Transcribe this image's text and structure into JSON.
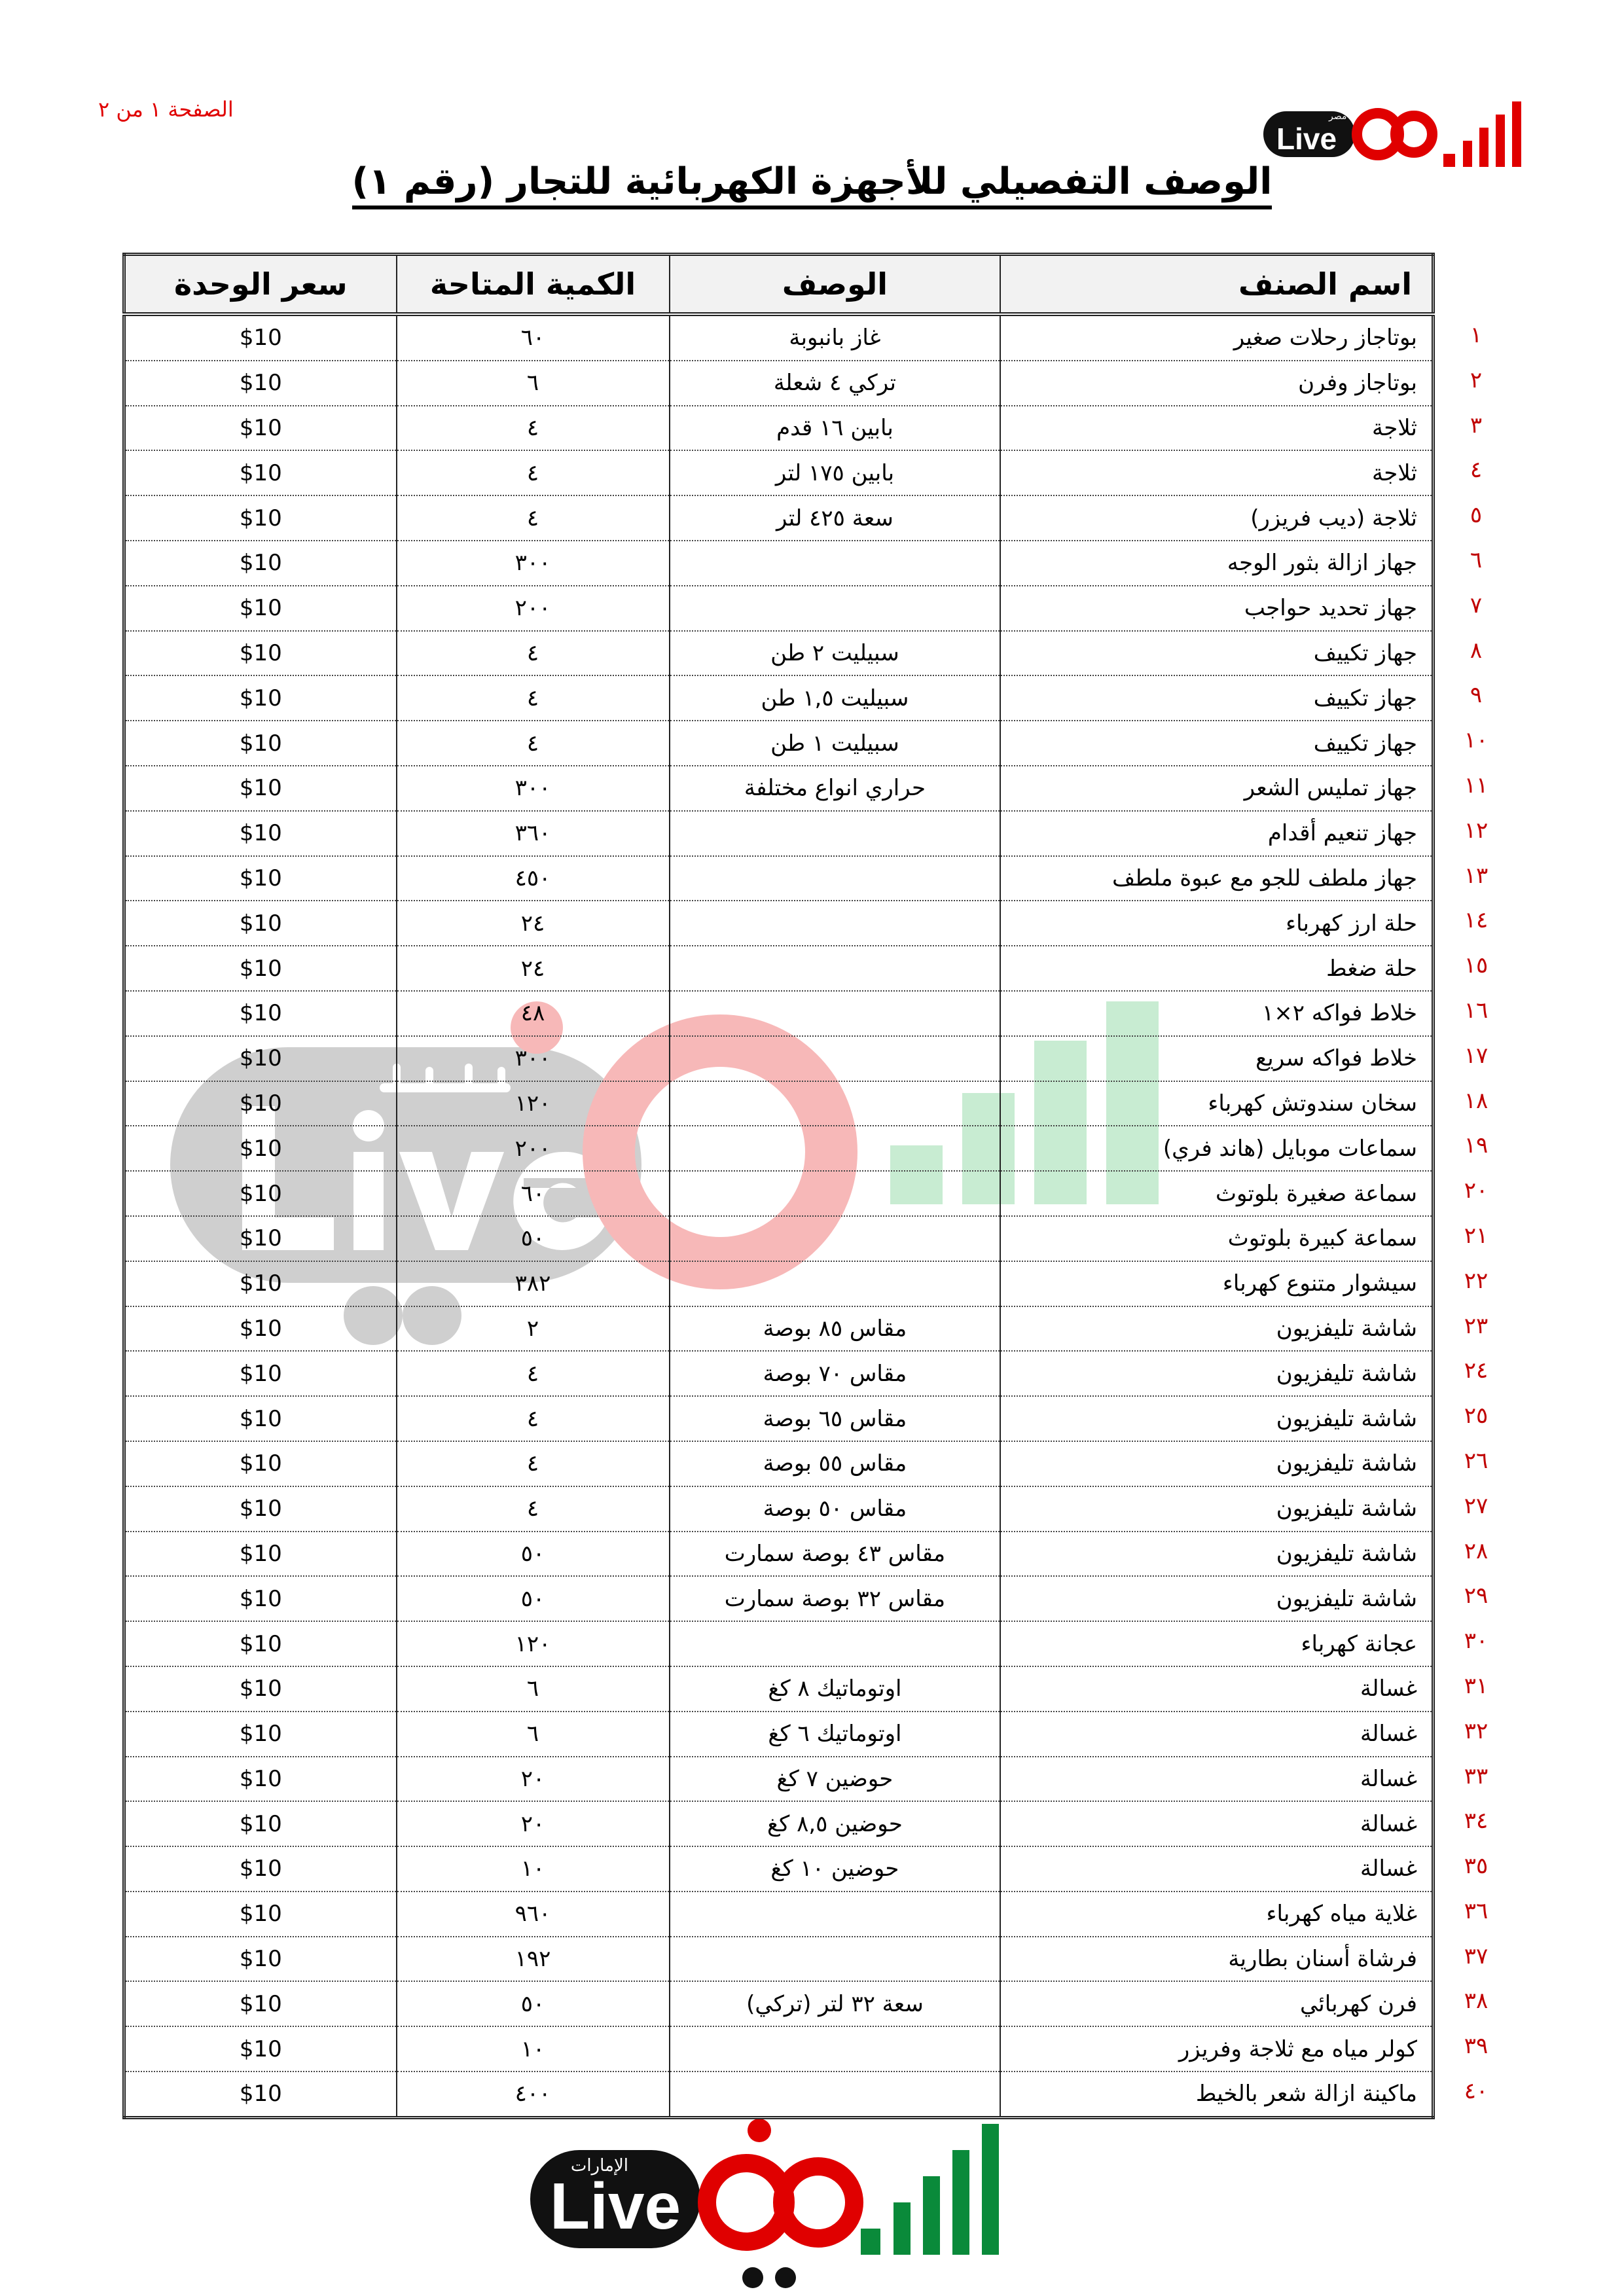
{
  "page_indicator": "الصفحة ١ من ٢",
  "logo_top": {
    "text": "Live",
    "sub": "مصر",
    "brand_color": "#e00000"
  },
  "logo_bottom": {
    "text": "Live",
    "sub": "الإمارات",
    "brand_color": "#0a8a3a"
  },
  "watermark": {
    "text": "Live",
    "sub": "الإمارات"
  },
  "title": "الوصف التفصيلي للأجهزة الكهربائية للتجار (رقم ١)",
  "table": {
    "headers": {
      "name": "اسم الصنف",
      "desc": "الوصف",
      "qty": "الكمية المتاحة",
      "price": "سعر الوحدة"
    },
    "rows": [
      {
        "n": "١",
        "name": "بوتاجاز رحلات صغير",
        "desc": "غاز بانبوبة",
        "qty": "٦٠",
        "price": "$10"
      },
      {
        "n": "٢",
        "name": "بوتاجاز وفرن",
        "desc": "تركي ٤ شعلة",
        "qty": "٦",
        "price": "$10"
      },
      {
        "n": "٣",
        "name": "ثلاجة",
        "desc": "بابين ١٦ قدم",
        "qty": "٤",
        "price": "$10"
      },
      {
        "n": "٤",
        "name": "ثلاجة",
        "desc": "بابين ١٧٥ لتر",
        "qty": "٤",
        "price": "$10"
      },
      {
        "n": "٥",
        "name": "ثلاجة (ديب فريزر)",
        "desc": "سعة ٤٢٥ لتر",
        "qty": "٤",
        "price": "$10"
      },
      {
        "n": "٦",
        "name": "جهاز ازالة بثور الوجه",
        "desc": "",
        "qty": "٣٠٠",
        "price": "$10"
      },
      {
        "n": "٧",
        "name": "جهاز تحديد حواجب",
        "desc": "",
        "qty": "٢٠٠",
        "price": "$10"
      },
      {
        "n": "٨",
        "name": "جهاز تكييف",
        "desc": "سبيليت ٢ طن",
        "qty": "٤",
        "price": "$10"
      },
      {
        "n": "٩",
        "name": "جهاز تكييف",
        "desc": "سبيليت ١,٥ طن",
        "qty": "٤",
        "price": "$10"
      },
      {
        "n": "١٠",
        "name": "جهاز تكييف",
        "desc": "سبيليت ١ طن",
        "qty": "٤",
        "price": "$10"
      },
      {
        "n": "١١",
        "name": "جهاز تمليس الشعر",
        "desc": "حراري انواع مختلفة",
        "qty": "٣٠٠",
        "price": "$10"
      },
      {
        "n": "١٢",
        "name": "جهاز تنعيم أقدام",
        "desc": "",
        "qty": "٣٦٠",
        "price": "$10"
      },
      {
        "n": "١٣",
        "name": "جهاز ملطف للجو مع عبوة ملطف",
        "desc": "",
        "qty": "٤٥٠",
        "price": "$10"
      },
      {
        "n": "١٤",
        "name": "حلة ارز كهرباء",
        "desc": "",
        "qty": "٢٤",
        "price": "$10"
      },
      {
        "n": "١٥",
        "name": "حلة ضغط",
        "desc": "",
        "qty": "٢٤",
        "price": "$10"
      },
      {
        "n": "١٦",
        "name": "خلاط فواكه ٢×١",
        "desc": "",
        "qty": "٤٨",
        "price": "$10"
      },
      {
        "n": "١٧",
        "name": "خلاط فواكه سريع",
        "desc": "",
        "qty": "٣٠٠",
        "price": "$10"
      },
      {
        "n": "١٨",
        "name": "سخان سندوتش كهرباء",
        "desc": "",
        "qty": "١٢٠",
        "price": "$10"
      },
      {
        "n": "١٩",
        "name": "سماعات موبايل (هاند فري)",
        "desc": "",
        "qty": "٢٠٠",
        "price": "$10"
      },
      {
        "n": "٢٠",
        "name": "سماعة صغيرة بلوتوث",
        "desc": "",
        "qty": "٦٠",
        "price": "$10"
      },
      {
        "n": "٢١",
        "name": "سماعة كبيرة بلوتوث",
        "desc": "",
        "qty": "٥٠",
        "price": "$10"
      },
      {
        "n": "٢٢",
        "name": "سيشوار متنوع كهرباء",
        "desc": "",
        "qty": "٣٨٢",
        "price": "$10"
      },
      {
        "n": "٢٣",
        "name": "شاشة تليفزيون",
        "desc": "مقاس ٨٥ بوصة",
        "qty": "٢",
        "price": "$10"
      },
      {
        "n": "٢٤",
        "name": "شاشة تليفزيون",
        "desc": "مقاس ٧٠ بوصة",
        "qty": "٤",
        "price": "$10"
      },
      {
        "n": "٢٥",
        "name": "شاشة تليفزيون",
        "desc": "مقاس ٦٥ بوصة",
        "qty": "٤",
        "price": "$10"
      },
      {
        "n": "٢٦",
        "name": "شاشة تليفزيون",
        "desc": "مقاس ٥٥ بوصة",
        "qty": "٤",
        "price": "$10"
      },
      {
        "n": "٢٧",
        "name": "شاشة تليفزيون",
        "desc": "مقاس ٥٠ بوصة",
        "qty": "٤",
        "price": "$10"
      },
      {
        "n": "٢٨",
        "name": "شاشة تليفزيون",
        "desc": "مقاس ٤٣ بوصة سمارت",
        "qty": "٥٠",
        "price": "$10"
      },
      {
        "n": "٢٩",
        "name": "شاشة تليفزيون",
        "desc": "مقاس ٣٢ بوصة سمارت",
        "qty": "٥٠",
        "price": "$10"
      },
      {
        "n": "٣٠",
        "name": "عجانة كهرباء",
        "desc": "",
        "qty": "١٢٠",
        "price": "$10"
      },
      {
        "n": "٣١",
        "name": "غسالة",
        "desc": "اوتوماتيك ٨ كغ",
        "qty": "٦",
        "price": "$10"
      },
      {
        "n": "٣٢",
        "name": "غسالة",
        "desc": "اوتوماتيك ٦ كغ",
        "qty": "٦",
        "price": "$10"
      },
      {
        "n": "٣٣",
        "name": "غسالة",
        "desc": "حوضين ٧ كغ",
        "qty": "٢٠",
        "price": "$10"
      },
      {
        "n": "٣٤",
        "name": "غسالة",
        "desc": "حوضين ٨,٥ كغ",
        "qty": "٢٠",
        "price": "$10"
      },
      {
        "n": "٣٥",
        "name": "غسالة",
        "desc": "حوضين ١٠ كغ",
        "qty": "١٠",
        "price": "$10"
      },
      {
        "n": "٣٦",
        "name": "غلاية مياه كهرباء",
        "desc": "",
        "qty": "٩٦٠",
        "price": "$10"
      },
      {
        "n": "٣٧",
        "name": "فرشاة أسنان بطارية",
        "desc": "",
        "qty": "١٩٢",
        "price": "$10"
      },
      {
        "n": "٣٨",
        "name": "فرن كهربائي",
        "desc": "سعة ٣٢ لتر (تركي)",
        "qty": "٥٠",
        "price": "$10"
      },
      {
        "n": "٣٩",
        "name": "كولر مياه مع ثلاجة وفريزر",
        "desc": "",
        "qty": "١٠",
        "price": "$10"
      },
      {
        "n": "٤٠",
        "name": "ماكينة ازالة شعر بالخيط",
        "desc": "",
        "qty": "٤٠٠",
        "price": "$10"
      }
    ]
  }
}
